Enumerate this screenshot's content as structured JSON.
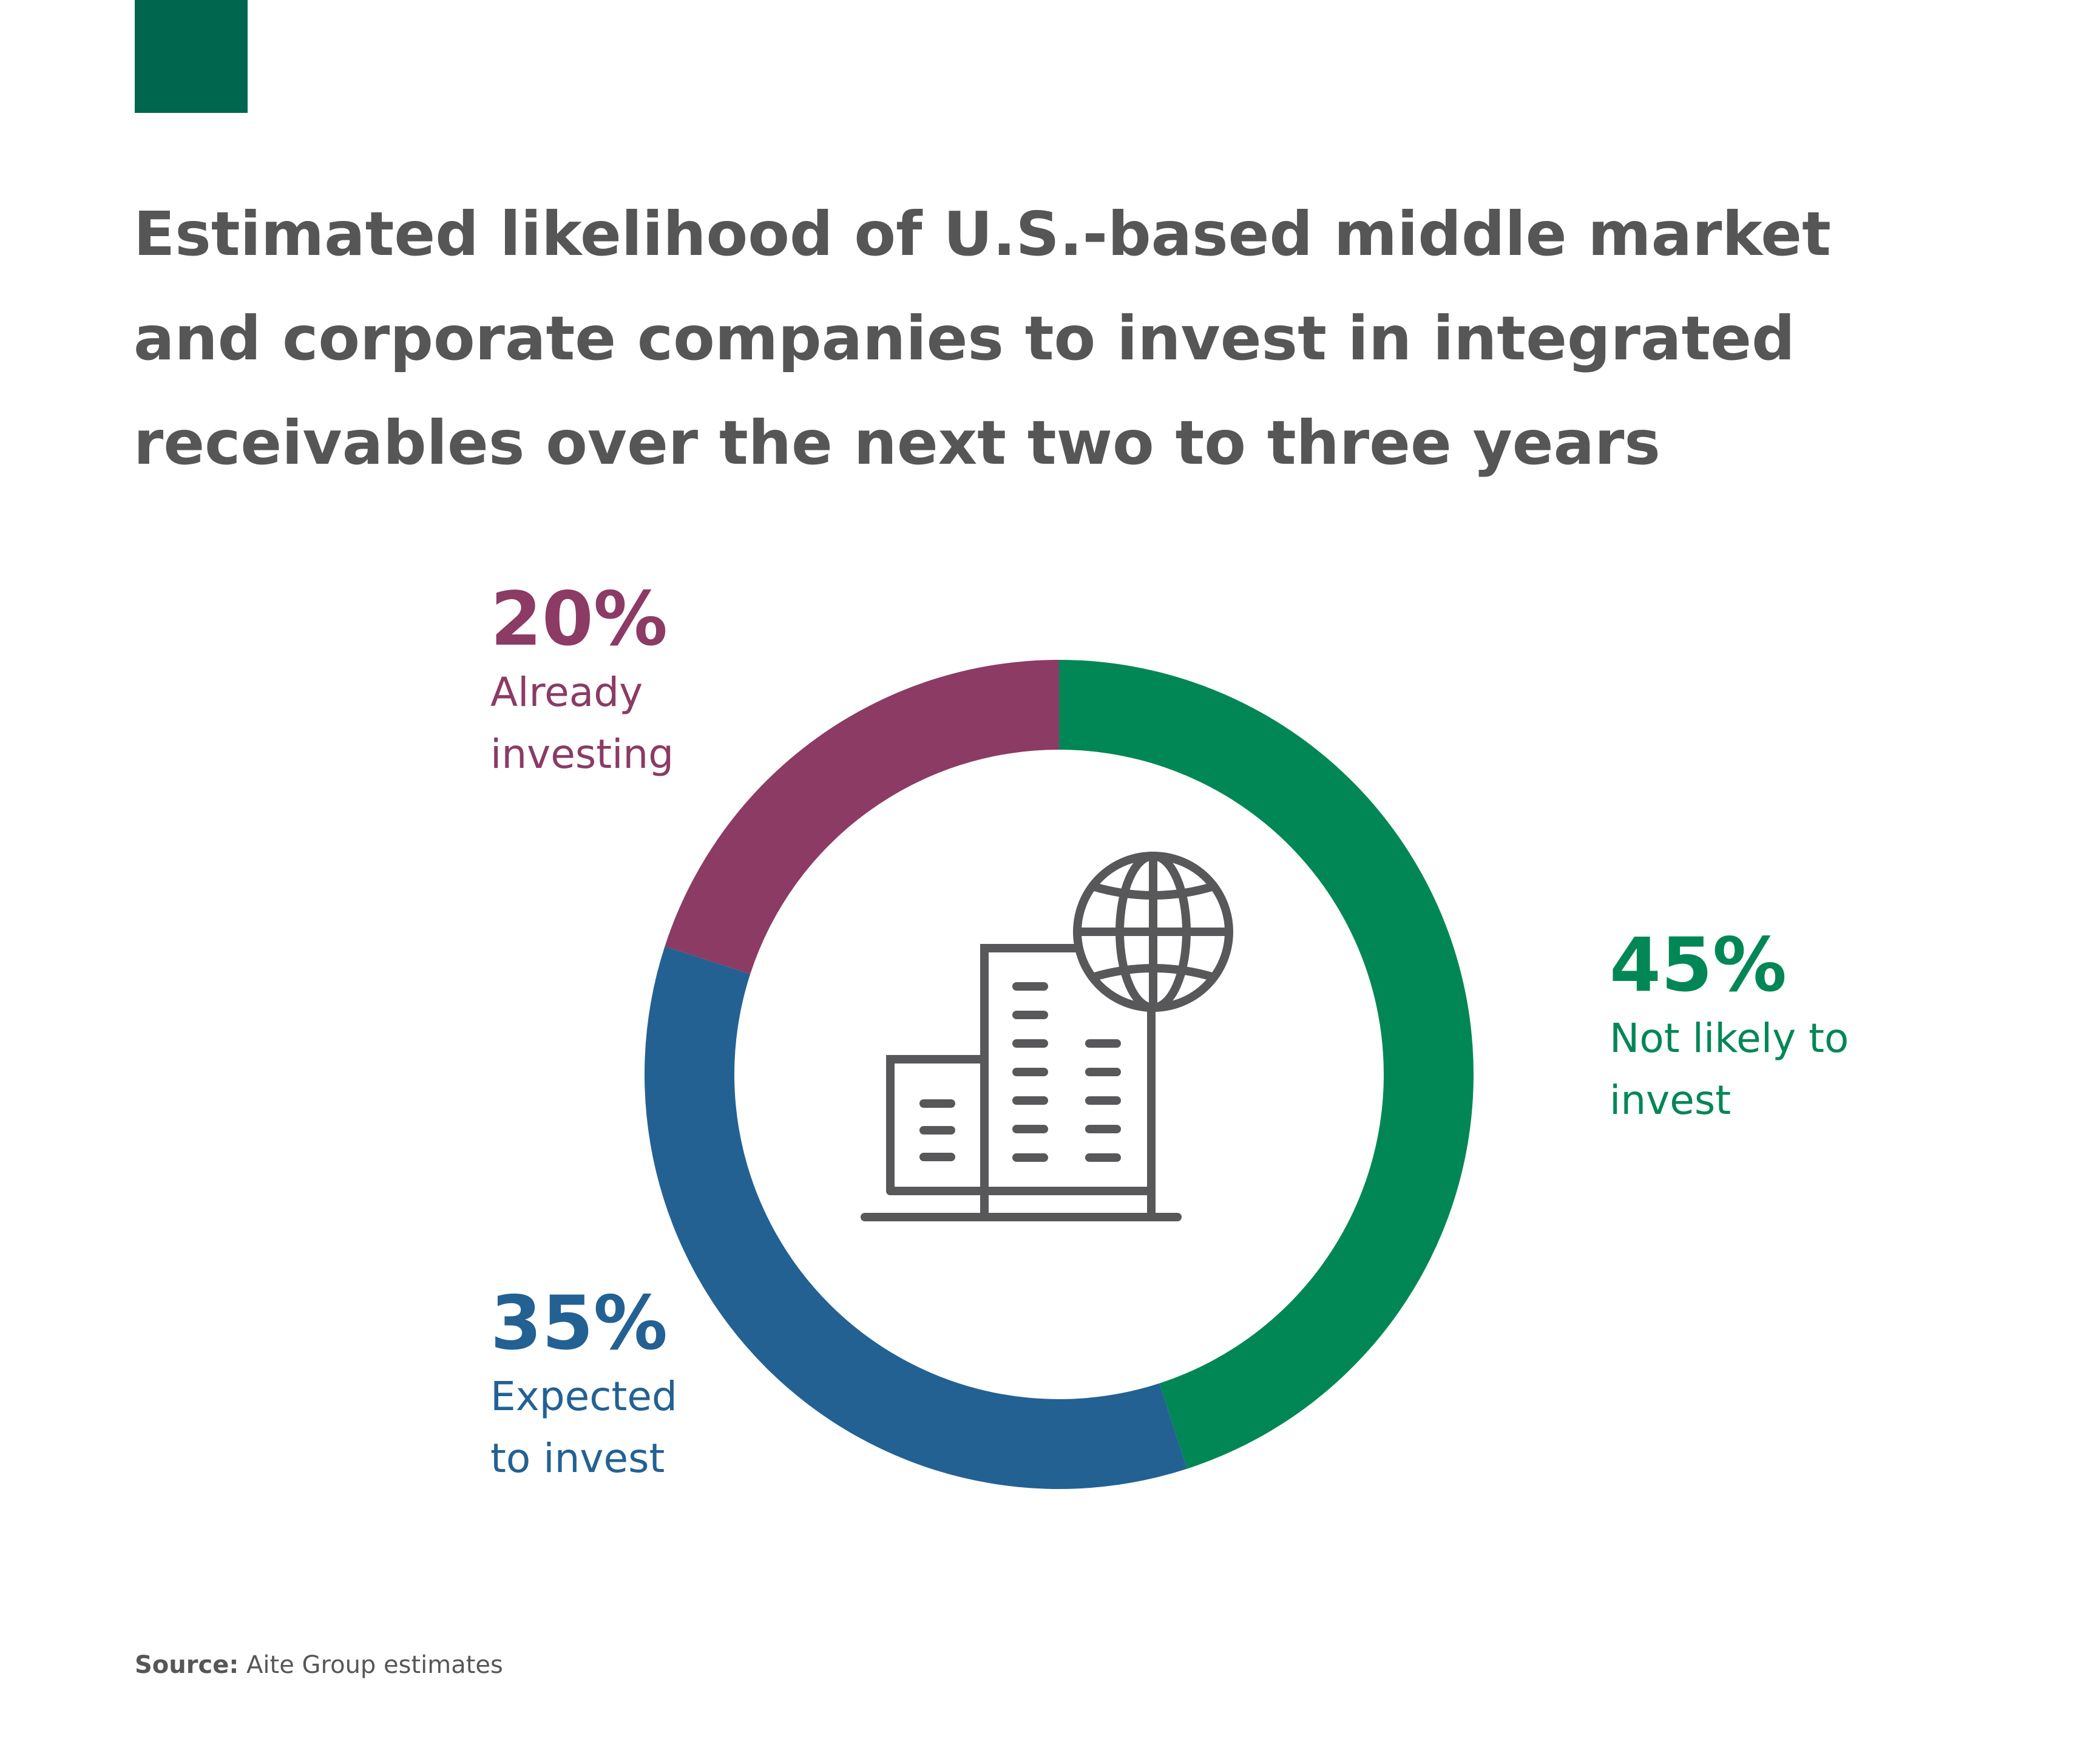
{
  "colors": {
    "accent": "#00674f",
    "title": "#565656",
    "not_likely": "#008755",
    "expected": "#236193",
    "already": "#8b3b64",
    "icon": "#58585a"
  },
  "title": "Estimated likelihood of U.S.-based middle market and corporate companies to invest in integrated receivables over the next two to three years",
  "center_icon": "office-buildings-globe-icon",
  "chart_data": {
    "type": "pie",
    "variant": "donut",
    "title": "Estimated likelihood of U.S.-based middle market and corporate companies to invest in integrated receivables over the next two to three years",
    "unit": "%",
    "categories": [
      "Not likely to invest",
      "Expected to invest",
      "Already investing"
    ],
    "values": [
      45,
      35,
      20
    ],
    "colors": [
      "#008755",
      "#236193",
      "#8b3b64"
    ],
    "start": "top, clockwise"
  },
  "callouts": {
    "already": {
      "pct": "20%",
      "label": "Already\ninvesting"
    },
    "not_likely": {
      "pct": "45%",
      "label": "Not likely to\ninvest"
    },
    "expected": {
      "pct": "35%",
      "label": "Expected\nto invest"
    }
  },
  "source": {
    "label": "Source:",
    "text": "Aite Group estimates"
  }
}
